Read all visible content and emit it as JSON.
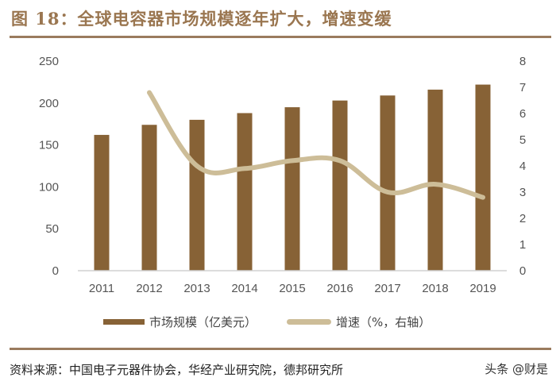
{
  "header": {
    "title": "图 18：全球电容器市场规模逐年扩大，增速变缓"
  },
  "footer": {
    "source": "资料来源：中国电子元器件协会，华经产业研究院，德邦研究所",
    "watermark": "头条 @财是"
  },
  "legend": {
    "bar_label": "市场规模（亿美元）",
    "line_label": "增速（%，右轴）"
  },
  "colors": {
    "bar": "#876236",
    "line": "#cdbd98",
    "rule": "#9a7b5e",
    "title": "#9a7650"
  },
  "chart_data": {
    "type": "bar+line",
    "title": "图 18：全球电容器市场规模逐年扩大，增速变缓",
    "categories": [
      "2011",
      "2012",
      "2013",
      "2014",
      "2015",
      "2016",
      "2017",
      "2018",
      "2019"
    ],
    "series": [
      {
        "name": "市场规模（亿美元）",
        "type": "bar",
        "axis": "left",
        "values": [
          162,
          174,
          180,
          188,
          195,
          203,
          209,
          216,
          222
        ]
      },
      {
        "name": "增速（%，右轴）",
        "type": "line",
        "axis": "right",
        "values": [
          null,
          6.8,
          4.0,
          3.9,
          4.2,
          4.2,
          3.0,
          3.3,
          2.8
        ]
      }
    ],
    "left_axis": {
      "ticks": [
        0,
        50,
        100,
        150,
        200,
        250
      ],
      "ylim": [
        0,
        250
      ]
    },
    "right_axis": {
      "ticks": [
        0,
        1,
        2,
        3,
        4,
        5,
        6,
        7,
        8
      ],
      "ylim": [
        0,
        8
      ]
    },
    "xlabel": "",
    "ylabel": "",
    "grid": false,
    "legend_position": "bottom"
  }
}
